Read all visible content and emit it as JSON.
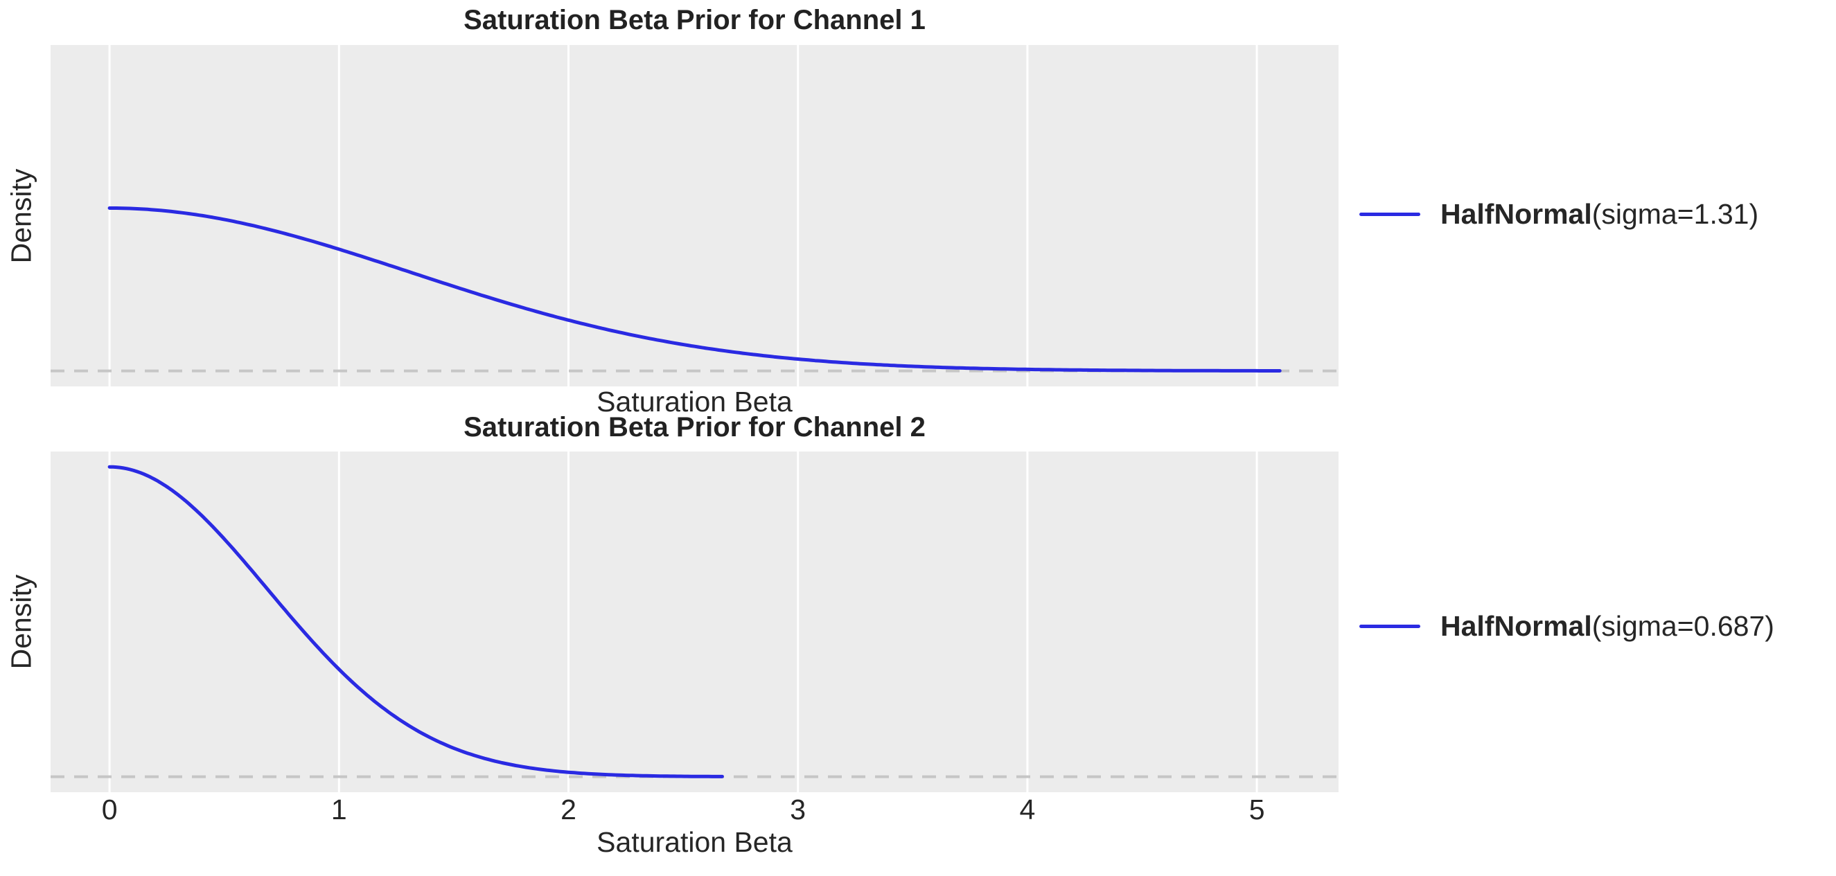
{
  "figure": {
    "background": "#ffffff",
    "axes_background": "#ececec",
    "grid_color": "#ffffff",
    "line_color": "#2a2ae2",
    "zero_line_color": "#c6c6c6",
    "text_color": "#262626"
  },
  "chart_data": [
    {
      "type": "line",
      "title": "Saturation Beta Prior for Channel 1",
      "xlabel": "Saturation Beta",
      "ylabel": "Density",
      "distribution": "HalfNormal",
      "sigma": 1.31,
      "legend": {
        "position": "right outside axes, no frame",
        "entries": [
          {
            "label_bold": "HalfNormal",
            "label_regular": "(sigma=1.31)"
          }
        ]
      },
      "x_ticks": [
        0,
        1,
        2,
        3,
        4,
        5
      ],
      "x_tick_labels_shown": false,
      "xlim": [
        -0.257,
        5.356
      ],
      "ylim": [
        -0.058,
        1.219
      ],
      "grid": "vertical white gridlines on gray panel",
      "zero_reference_line": "dashed horizontal line at density 0",
      "series": [
        {
          "name": "HalfNormal(sigma=1.31)",
          "x_start": 0,
          "x_end": 5.1,
          "peak_density": 0.609,
          "sample_points": {
            "x": [
              0,
              0.5,
              1.0,
              1.5,
              2.0,
              2.5,
              3.0,
              3.5,
              4.0,
              4.5,
              5.0,
              5.1
            ],
            "density": [
              0.609,
              0.566,
              0.455,
              0.316,
              0.19,
              0.099,
              0.044,
              0.017,
              0.006,
              0.002,
              0.0004,
              0.0003
            ]
          }
        }
      ]
    },
    {
      "type": "line",
      "title": "Saturation Beta Prior for Channel 2",
      "xlabel": "Saturation Beta",
      "ylabel": "Density",
      "distribution": "HalfNormal",
      "sigma": 0.687,
      "legend": {
        "position": "right outside axes, no frame",
        "entries": [
          {
            "label_bold": "HalfNormal",
            "label_regular": "(sigma=0.687)"
          }
        ]
      },
      "x_ticks": [
        0,
        1,
        2,
        3,
        4,
        5
      ],
      "x_tick_labels_shown": true,
      "xlim": [
        -0.257,
        5.356
      ],
      "ylim": [
        -0.058,
        1.219
      ],
      "grid": "vertical white gridlines on gray panel",
      "zero_reference_line": "dashed horizontal line at density 0",
      "series": [
        {
          "name": "HalfNormal(sigma=0.687)",
          "x_start": 0,
          "x_end": 2.68,
          "peak_density": 1.161,
          "sample_points": {
            "x": [
              0,
              0.25,
              0.5,
              0.75,
              1.0,
              1.25,
              1.5,
              1.75,
              2.0,
              2.25,
              2.5,
              2.68
            ],
            "density": [
              1.161,
              1.087,
              0.891,
              0.64,
              0.403,
              0.222,
              0.107,
              0.045,
              0.017,
              0.005,
              0.002,
              0.0006
            ]
          }
        }
      ]
    }
  ]
}
